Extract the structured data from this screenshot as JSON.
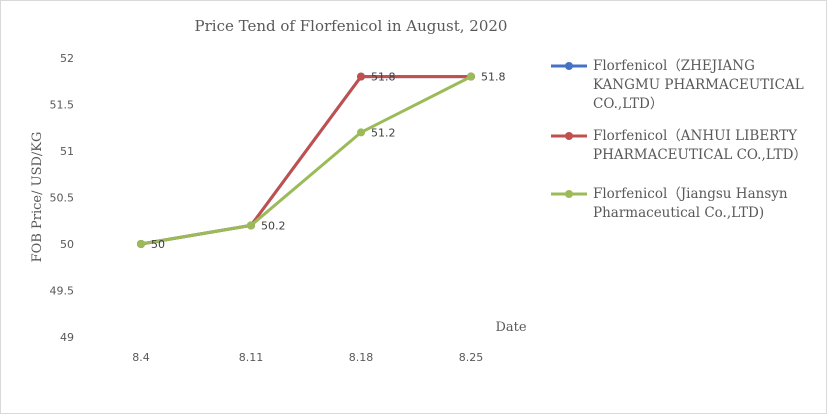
{
  "chart_data": {
    "type": "line",
    "title": "Price Tend of Florfenicol in August, 2020",
    "xlabel": "Date",
    "ylabel": "FOB Price/ USD/KG",
    "categories": [
      "8.4",
      "8.11",
      "8.18",
      "8.25"
    ],
    "ylim": [
      49,
      52
    ],
    "yticks": [
      "49",
      "49.5",
      "50",
      "50.5",
      "51",
      "51.5",
      "52"
    ],
    "grid": false,
    "legend_position": "right",
    "series": [
      {
        "name": "Florfenicol（ZHEJIANG KANGMU PHARMACEUTICAL CO.,LTD）",
        "color": "#4472c4",
        "values": [
          50,
          50.2,
          51.8,
          51.8
        ]
      },
      {
        "name": "Florfenicol（ANHUI LIBERTY PHARMACEUTICAL CO.,LTD）",
        "color": "#c0504d",
        "values": [
          50,
          50.2,
          51.8,
          51.8
        ]
      },
      {
        "name": "Florfenicol（Jiangsu Hansyn Pharmaceutical Co.,LTD)",
        "color": "#9bbb59",
        "values": [
          50,
          50.2,
          51.2,
          51.8
        ]
      }
    ],
    "data_labels": [
      "50",
      "50.2",
      "51.8",
      "51.2",
      "51.8"
    ]
  }
}
